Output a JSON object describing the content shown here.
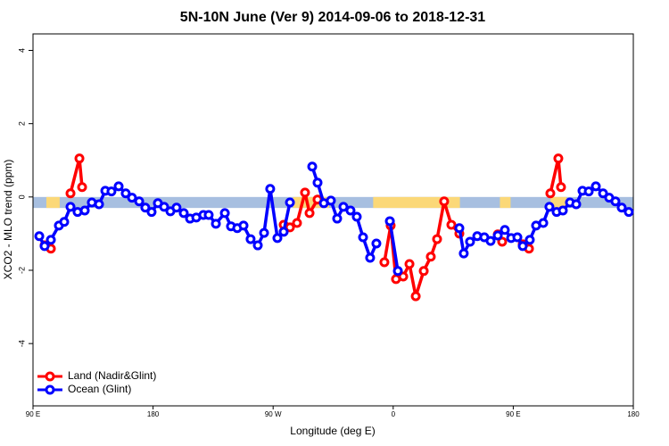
{
  "chart_data": {
    "type": "line",
    "title": "5N-10N June (Ver 9)   2014-09-06 to 2018-12-31",
    "x_label": "Longitude (deg E)",
    "y_label": "XCO2 - MLO trend (ppm)",
    "xlim": [
      90,
      540
    ],
    "ylim": [
      -5.7,
      4.45
    ],
    "xticks": [
      {
        "value": 90,
        "label": "90 E"
      },
      180,
      {
        "value": 270,
        "label": "90 W"
      },
      {
        "value": 360,
        "label": "0"
      },
      {
        "value": 450,
        "label": "90 E"
      },
      {
        "value": 540,
        "label": "180"
      }
    ],
    "yticks": [
      4,
      2,
      0,
      -2,
      -4
    ],
    "band": {
      "top": 0,
      "bottom": -0.3,
      "color": "#a7bfe0",
      "land_color": "#fbd878",
      "land_spans": [
        [
          100,
          110
        ],
        [
          285,
          312
        ],
        [
          345,
          410
        ],
        [
          440,
          448
        ],
        [
          478,
          490
        ]
      ]
    },
    "legend": "bottom-left",
    "series": [
      {
        "name": "Land (Nadir&Glint)",
        "color": "#ff0000",
        "x": [
          98.7,
          103.4,
          null,
          118.1,
          124.8,
          126.8,
          null,
          277.9,
          282.6,
          287.9,
          293.9,
          297.3,
          303.3,
          null,
          353.4,
          358.1,
          362.1,
          367.5,
          372.2,
          376.9,
          382.9,
          388.2,
          392.9,
          398.2,
          403.6,
          409.6,
          null,
          438.4,
          441.7,
          null,
          457.1,
          461.8,
          null,
          477.8,
          483.8,
          485.8
        ],
        "values": [
          -1.32,
          -1.41,
          null,
          0.1,
          1.05,
          0.27,
          null,
          -0.76,
          -0.83,
          -0.71,
          0.12,
          -0.44,
          -0.07,
          null,
          -1.78,
          -0.78,
          -2.24,
          -2.17,
          -1.83,
          -2.71,
          -2.02,
          -1.63,
          -1.15,
          -0.12,
          -0.76,
          -1.0,
          null,
          -1.02,
          -1.22,
          null,
          -1.29,
          -1.41,
          null,
          0.1,
          1.05,
          0.27
        ]
      },
      {
        "name": "Ocean (Glint)",
        "color": "#0000ff",
        "x": [
          94.7,
          98.7,
          103.4,
          109.4,
          113.4,
          118.1,
          123.4,
          128.8,
          134.1,
          139.5,
          144.2,
          148.8,
          154.2,
          159.5,
          164.2,
          169.6,
          174.2,
          178.9,
          183.6,
          188.3,
          193,
          197.6,
          203,
          207.7,
          212.4,
          217.7,
          221.7,
          227.1,
          233.8,
          238.4,
          243.1,
          247.8,
          253.1,
          258.5,
          263.2,
          267.8,
          273.2,
          277.9,
          282.6,
          null,
          299.3,
          303.3,
          308,
          313.3,
          318,
          322.7,
          328,
          332.7,
          337.4,
          342.7,
          347.4,
          null,
          357.5,
          363.5,
          null,
          409.6,
          412.9,
          417.6,
          423,
          428.3,
          433,
          438.4,
          443.7,
          448.4,
          453.1,
          457.1,
          462.4,
          467.1,
          472.5,
          477.1,
          482.5,
          487.2,
          492.5,
          497.2,
          501.9,
          506.6,
          511.9,
          517.3,
          521.9,
          526.6,
          531.3,
          536.6
        ],
        "values": [
          -1.07,
          -1.34,
          -1.17,
          -0.78,
          -0.68,
          -0.27,
          -0.41,
          -0.37,
          -0.15,
          -0.2,
          0.17,
          0.15,
          0.29,
          0.1,
          -0.02,
          -0.12,
          -0.29,
          -0.41,
          -0.17,
          -0.27,
          -0.39,
          -0.29,
          -0.44,
          -0.59,
          -0.56,
          -0.49,
          -0.49,
          -0.73,
          -0.44,
          -0.8,
          -0.85,
          -0.78,
          -1.15,
          -1.32,
          -0.98,
          0.22,
          -1.12,
          -0.95,
          -0.15,
          null,
          0.83,
          0.39,
          -0.17,
          -0.1,
          -0.59,
          -0.27,
          -0.37,
          -0.54,
          -1.1,
          -1.66,
          -1.27,
          null,
          -0.66,
          -2.02,
          null,
          -0.85,
          -1.54,
          -1.22,
          -1.07,
          -1.1,
          -1.2,
          -1.05,
          -0.9,
          -1.12,
          -1.1,
          -1.34,
          -1.17,
          -0.78,
          -0.71,
          -0.27,
          -0.41,
          -0.37,
          -0.15,
          -0.2,
          0.17,
          0.15,
          0.29,
          0.1,
          -0.02,
          -0.12,
          -0.29,
          -0.41
        ]
      }
    ]
  }
}
